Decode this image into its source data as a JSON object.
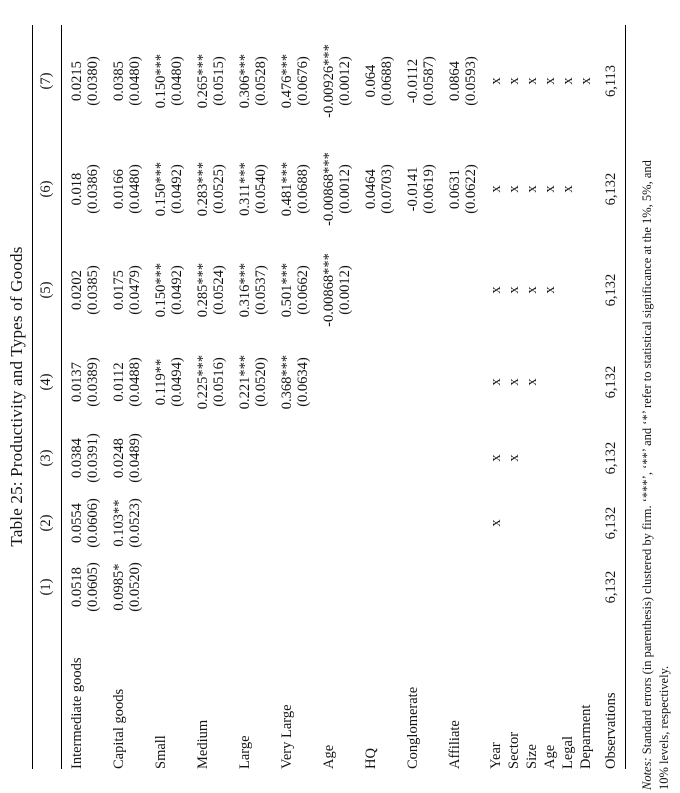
{
  "title": "Table 25: Productivity and Types of Goods",
  "colors": {
    "text": "#141414",
    "background": "#ffffff",
    "rule": "#000000"
  },
  "table": {
    "col_headers": [
      "(1)",
      "(2)",
      "(3)",
      "(4)",
      "(5)",
      "(6)",
      "(7)"
    ],
    "coef_rows": [
      {
        "label": "Intermediate goods",
        "coefs": [
          "0.0518",
          "0.0554",
          "0.0384",
          "0.0137",
          "0.0202",
          "0.018",
          "0.0215"
        ],
        "ses": [
          "(0.0605)",
          "(0.0606)",
          "(0.0391)",
          "(0.0389)",
          "(0.0385)",
          "(0.0386)",
          "(0.0380)"
        ]
      },
      {
        "label": "Capital goods",
        "coefs": [
          "0.0985*",
          "0.103**",
          "0.0248",
          "0.0112",
          "0.0175",
          "0.0166",
          "0.0385"
        ],
        "ses": [
          "(0.0520)",
          "(0.0523)",
          "(0.0489)",
          "(0.0488)",
          "(0.0479)",
          "(0.0480)",
          "(0.0480)"
        ]
      },
      {
        "label": "Small",
        "coefs": [
          "",
          "",
          "",
          "0.119**",
          "0.150***",
          "0.150***",
          "0.150***"
        ],
        "ses": [
          "",
          "",
          "",
          "(0.0494)",
          "(0.0492)",
          "(0.0492)",
          "(0.0480)"
        ]
      },
      {
        "label": "Medium",
        "coefs": [
          "",
          "",
          "",
          "0.225***",
          "0.285***",
          "0.283***",
          "0.265***"
        ],
        "ses": [
          "",
          "",
          "",
          "(0.0516)",
          "(0.0524)",
          "(0.0525)",
          "(0.0515)"
        ]
      },
      {
        "label": "Large",
        "coefs": [
          "",
          "",
          "",
          "0.221***",
          "0.316***",
          "0.311***",
          "0.306***"
        ],
        "ses": [
          "",
          "",
          "",
          "(0.0520)",
          "(0.0537)",
          "(0.0540)",
          "(0.0528)"
        ]
      },
      {
        "label": "Very Large",
        "coefs": [
          "",
          "",
          "",
          "0.368***",
          "0.501***",
          "0.481***",
          "0.476***"
        ],
        "ses": [
          "",
          "",
          "",
          "(0.0634)",
          "(0.0662)",
          "(0.0688)",
          "(0.0676)"
        ]
      },
      {
        "label": "Age",
        "coefs": [
          "",
          "",
          "",
          "",
          "-0.00868***",
          "-0.00868***",
          "-0.00926***"
        ],
        "ses": [
          "",
          "",
          "",
          "",
          "(0.0012)",
          "(0.0012)",
          "(0.0012)"
        ]
      },
      {
        "label": "HQ",
        "coefs": [
          "",
          "",
          "",
          "",
          "",
          "0.0464",
          "0.064"
        ],
        "ses": [
          "",
          "",
          "",
          "",
          "",
          "(0.0703)",
          "(0.0688)"
        ]
      },
      {
        "label": "Conglomerate",
        "coefs": [
          "",
          "",
          "",
          "",
          "",
          "-0.0141",
          "-0.0112"
        ],
        "ses": [
          "",
          "",
          "",
          "",
          "",
          "(0.0619)",
          "(0.0587)"
        ]
      },
      {
        "label": "Affiliate",
        "coefs": [
          "",
          "",
          "",
          "",
          "",
          "0.0631",
          "0.0864"
        ],
        "ses": [
          "",
          "",
          "",
          "",
          "",
          "(0.0622)",
          "(0.0593)"
        ]
      }
    ],
    "fe_rows": [
      {
        "label": "Year",
        "marks": [
          "",
          "x",
          "x",
          "x",
          "x",
          "x",
          "x"
        ]
      },
      {
        "label": "Sector",
        "marks": [
          "",
          "",
          "x",
          "x",
          "x",
          "x",
          "x"
        ]
      },
      {
        "label": "Size",
        "marks": [
          "",
          "",
          "",
          "x",
          "x",
          "x",
          "x"
        ]
      },
      {
        "label": "Age",
        "marks": [
          "",
          "",
          "",
          "",
          "x",
          "x",
          "x"
        ]
      },
      {
        "label": "Legal",
        "marks": [
          "",
          "",
          "",
          "",
          "",
          "x",
          "x"
        ]
      },
      {
        "label": "Deparment",
        "marks": [
          "",
          "",
          "",
          "",
          "",
          "",
          "x"
        ]
      }
    ],
    "obs_row": {
      "label": "Observations",
      "values": [
        "6,132",
        "6,132",
        "6,132",
        "6,132",
        "6,132",
        "6,132",
        "6,113"
      ]
    }
  },
  "notes": {
    "prefix": "Notes:",
    "line1_rest": " Standard errors (in parenthesis) clustered by firm. ‘***’, ‘**’ and ‘*’ refer to statistical significance at the 1%, 5%, and",
    "line2": "10% levels, respectively."
  }
}
